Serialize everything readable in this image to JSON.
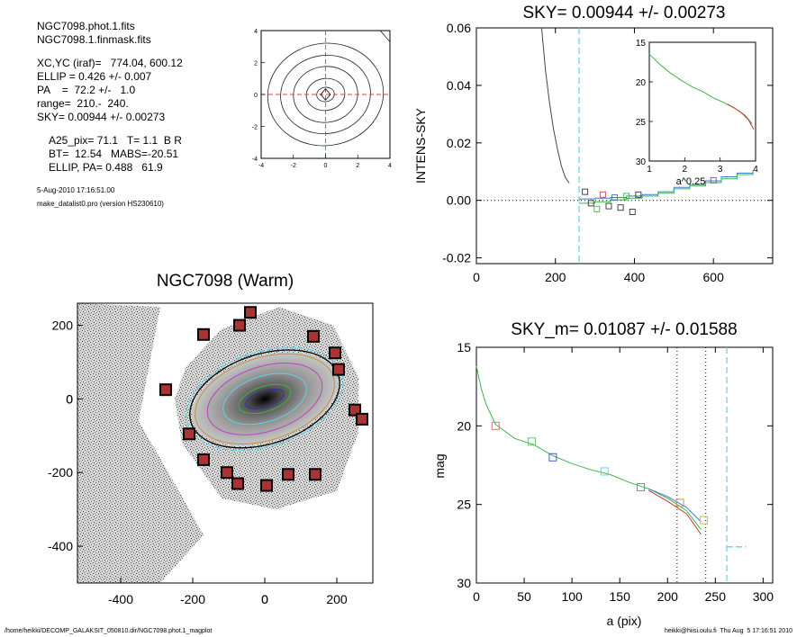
{
  "header": {
    "files": [
      "NGC7098.phot.1.fits",
      "NGC7098.1.finmask.fits"
    ],
    "params": [
      "XC,YC (iraf)=   774.04, 600.12",
      "ELLIP = 0.426 +/- 0.007",
      "PA    =  72.2 +/-   1.0",
      "range=  210.-  240.",
      "SKY= 0.00944 +/- 0.00273"
    ],
    "results": [
      "A25_pix= 71.1   T= 1.1  B R",
      "BT=  12.54   MABS=-20.51",
      "ELLIP, PA= 0.488   61.9"
    ],
    "date": "5-Aug-2010 17:16:51.00",
    "program": "make_datalist0.pro (version HS230610)"
  },
  "footer": {
    "left": "/home/heikki/DECOMP_GALAKSIT_050810.dir/NGC7098.phot.1_magplot",
    "right": "heikki@hiisi.oulu.fi  Thu Aug  5 17:16:51 2010"
  },
  "chart_data": [
    {
      "id": "contour",
      "type": "contour",
      "title": "",
      "xlim": [
        -4,
        4
      ],
      "ylim": [
        -4,
        4
      ],
      "xticks": [
        "-4",
        "-2",
        "0",
        "2",
        "4"
      ],
      "yticks": [
        "-4",
        "-2",
        "0",
        "2",
        "4"
      ],
      "contours": [
        {
          "a": 0.55,
          "b": 0.45
        },
        {
          "a": 1.2,
          "b": 1.0
        },
        {
          "a": 2.0,
          "b": 1.75
        },
        {
          "a": 2.8,
          "b": 2.45
        },
        {
          "a": 3.6,
          "b": 3.2
        }
      ],
      "crosshair_color": "#e04040"
    },
    {
      "id": "sky",
      "type": "line",
      "title": "SKY= 0.00944 +/- 0.00273",
      "xlabel": "",
      "ylabel": "INTENS-SKY",
      "xlim": [
        0,
        750
      ],
      "ylim": [
        -0.022,
        0.06
      ],
      "xticks": [
        0,
        200,
        400,
        600
      ],
      "yticks": [
        -0.02,
        0.0,
        0.02,
        0.04,
        0.06
      ],
      "ytick_labels": [
        "-0.02",
        "0.00",
        "0.02",
        "0.04",
        "0.06"
      ],
      "profile": {
        "x": [
          165,
          175,
          185,
          195,
          205,
          215,
          225,
          235
        ],
        "y": [
          0.06,
          0.045,
          0.034,
          0.025,
          0.018,
          0.012,
          0.008,
          0.006
        ]
      },
      "dashed_vline_x": 260,
      "dashed_vline_color": "#5fd3e8",
      "steps": [
        {
          "color": "#3a7fd0",
          "x": [
            260,
            300,
            340,
            380,
            420,
            460,
            500,
            540,
            580,
            620,
            660,
            700
          ],
          "y": [
            0.0005,
            0.0008,
            0.001,
            0.0015,
            0.002,
            0.003,
            0.0045,
            0.0055,
            0.0068,
            0.0082,
            0.0095,
            0.0105
          ]
        },
        {
          "color": "#3cb44b",
          "x": [
            260,
            300,
            340,
            380,
            420,
            460,
            500,
            540,
            580,
            620,
            660,
            700
          ],
          "y": [
            -0.001,
            -0.0005,
            0.0002,
            0.0008,
            0.0015,
            0.0025,
            0.004,
            0.005,
            0.0062,
            0.0075,
            0.009,
            0.0098
          ]
        }
      ],
      "markers": [
        {
          "x": 275,
          "y": 0.003,
          "color": "#333333"
        },
        {
          "x": 290,
          "y": -0.001,
          "color": "#333333"
        },
        {
          "x": 305,
          "y": -0.003,
          "color": "#3cb44b"
        },
        {
          "x": 320,
          "y": 0.002,
          "color": "#d04040"
        },
        {
          "x": 335,
          "y": -0.002,
          "color": "#333333"
        },
        {
          "x": 350,
          "y": 0.001,
          "color": "#3a7fd0"
        },
        {
          "x": 365,
          "y": -0.0025,
          "color": "#333333"
        },
        {
          "x": 380,
          "y": 0.0015,
          "color": "#3cb44b"
        },
        {
          "x": 395,
          "y": -0.004,
          "color": "#333333"
        },
        {
          "x": 410,
          "y": 0.002,
          "color": "#333333"
        },
        {
          "x": 600,
          "y": 0.007,
          "color": "#9040c0"
        }
      ],
      "inset": {
        "xlabel": "a^0.25",
        "xlim": [
          1,
          4
        ],
        "ylim_reversed": [
          15,
          30
        ],
        "xticks": [
          1,
          2,
          3,
          4
        ],
        "yticks": [
          15,
          20,
          25,
          30
        ],
        "series": [
          {
            "color": "#3cb44b",
            "x": [
              1.0,
              1.3,
              1.6,
              1.9,
              2.2,
              2.5,
              2.8,
              3.1,
              3.4,
              3.7,
              3.9
            ],
            "y": [
              16.5,
              17.8,
              18.9,
              19.8,
              20.6,
              21.2,
              22.0,
              22.6,
              23.3,
              24.2,
              25.3
            ]
          },
          {
            "color": "#c0392b",
            "x": [
              3.2,
              3.4,
              3.6,
              3.8,
              3.95
            ],
            "y": [
              22.8,
              23.3,
              23.9,
              24.8,
              26.0
            ]
          }
        ]
      }
    },
    {
      "id": "image",
      "type": "image",
      "title": "NGC7098 (Warm)",
      "xlim": [
        -520,
        300
      ],
      "ylim": [
        -500,
        260
      ],
      "xticks": [
        -400,
        -200,
        0,
        200
      ],
      "yticks": [
        -400,
        -200,
        0,
        200
      ],
      "ellipses": [
        {
          "a": 55,
          "b": 22,
          "color": "#3030a0"
        },
        {
          "a": 75,
          "b": 34,
          "color": "#3cb44b"
        },
        {
          "a": 120,
          "b": 62,
          "color": "#5fd3e8"
        },
        {
          "a": 165,
          "b": 88,
          "color": "#c040c0"
        },
        {
          "a": 200,
          "b": 112,
          "color": "#c09040"
        },
        {
          "a": 215,
          "b": 122,
          "color": "#000000"
        },
        {
          "a": 225,
          "b": 128,
          "color": "#5fd3e8"
        }
      ],
      "sky_boxes": [
        [
          -40,
          235
        ],
        [
          -70,
          200
        ],
        [
          -170,
          175
        ],
        [
          135,
          170
        ],
        [
          195,
          125
        ],
        [
          205,
          80
        ],
        [
          -275,
          25
        ],
        [
          250,
          -30
        ],
        [
          270,
          -55
        ],
        [
          -210,
          -95
        ],
        [
          -170,
          -165
        ],
        [
          -105,
          -200
        ],
        [
          -75,
          -230
        ],
        [
          65,
          -205
        ],
        [
          140,
          -205
        ],
        [
          5,
          -235
        ]
      ]
    },
    {
      "id": "mag",
      "type": "line",
      "title": "SKY_m=  0.01087 +/- 0.01588",
      "xlabel": "a (pix)",
      "ylabel": "mag",
      "xlim": [
        0,
        310
      ],
      "ylim_reversed": [
        15,
        30
      ],
      "xticks": [
        0,
        50,
        100,
        150,
        200,
        250,
        300
      ],
      "yticks": [
        15,
        20,
        25,
        30
      ],
      "dotted_vlines": [
        210,
        240
      ],
      "dashed_vline_x": 262,
      "sky_level": {
        "x": [
          262,
          282
        ],
        "y": 27.7,
        "color": "#5fd3e8"
      },
      "series": [
        {
          "color": "#3cb44b",
          "x": [
            0,
            5,
            10,
            20,
            40,
            60,
            80,
            100,
            120,
            140,
            160,
            180,
            200,
            220,
            235
          ],
          "y": [
            16.2,
            17.6,
            18.6,
            19.9,
            20.8,
            21.2,
            21.9,
            22.4,
            22.8,
            23.1,
            23.6,
            24.0,
            24.6,
            25.4,
            26.6
          ]
        },
        {
          "color": "#3a7fd0",
          "x": [
            180,
            200,
            220,
            235
          ],
          "y": [
            24.0,
            24.5,
            25.2,
            26.1
          ]
        },
        {
          "color": "#c0392b",
          "x": [
            180,
            200,
            220,
            235
          ],
          "y": [
            24.1,
            24.8,
            25.6,
            26.9
          ]
        }
      ],
      "markers": [
        {
          "x": 20,
          "y": 20.0,
          "color": "#e07070"
        },
        {
          "x": 58,
          "y": 21.0,
          "color": "#70c070"
        },
        {
          "x": 80,
          "y": 22.0,
          "color": "#4060c0"
        },
        {
          "x": 134,
          "y": 22.9,
          "color": "#5fd3e8"
        },
        {
          "x": 172,
          "y": 23.9,
          "color": "#c060c0"
        },
        {
          "x": 213,
          "y": 24.9,
          "color": "#d09050"
        },
        {
          "x": 238,
          "y": 26.0,
          "color": "#c0c040"
        }
      ]
    }
  ]
}
